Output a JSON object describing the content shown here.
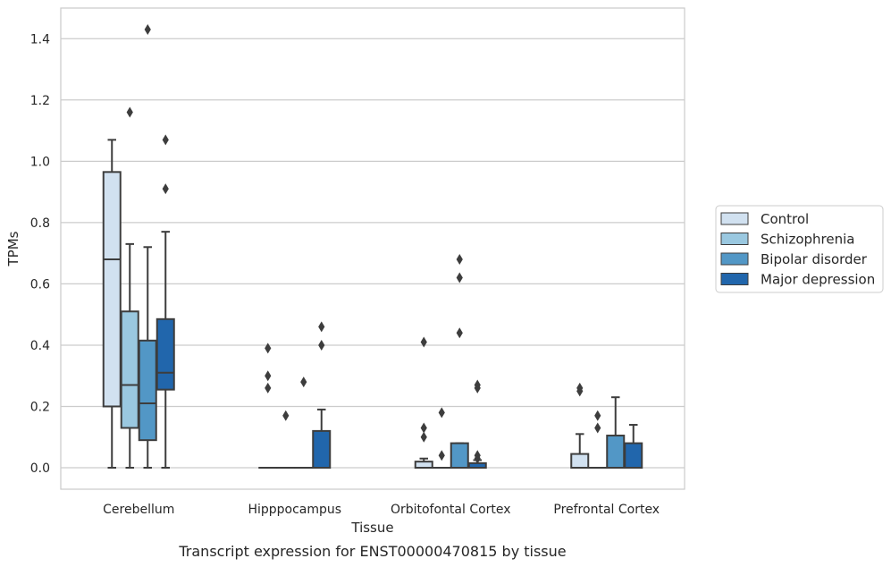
{
  "caption": "Transcript expression for ENST00000470815 by tissue",
  "chart_data": {
    "type": "box",
    "xlabel": "Tissue",
    "ylabel": "TPMs",
    "ylim": [
      -0.07,
      1.5
    ],
    "yticks": [
      "0.0",
      "0.2",
      "0.4",
      "0.6",
      "0.8",
      "1.0",
      "1.2",
      "1.4"
    ],
    "grid": "horizontal",
    "legend_position": "right",
    "categories": [
      "Cerebellum",
      "Hipppocampus",
      "Orbitofontal Cortex",
      "Prefrontal Cortex"
    ],
    "series": [
      {
        "name": "Control",
        "color": "#d1e1f0",
        "boxes": [
          {
            "whislo": 0.0,
            "q1": 0.2,
            "med": 0.68,
            "q3": 0.965,
            "whishi": 1.07,
            "fliers": []
          },
          {
            "whislo": 0.0,
            "q1": 0.0,
            "med": 0.0,
            "q3": 0.0,
            "whishi": 0.0,
            "fliers": [
              0.39,
              0.3,
              0.26
            ]
          },
          {
            "whislo": 0.0,
            "q1": 0.0,
            "med": 0.0,
            "q3": 0.02,
            "whishi": 0.03,
            "fliers": [
              0.41,
              0.13,
              0.1
            ]
          },
          {
            "whislo": 0.0,
            "q1": 0.0,
            "med": 0.0,
            "q3": 0.045,
            "whishi": 0.11,
            "fliers": [
              0.26,
              0.25
            ]
          }
        ]
      },
      {
        "name": "Schizophrenia",
        "color": "#9ac8e0",
        "boxes": [
          {
            "whislo": 0.0,
            "q1": 0.13,
            "med": 0.27,
            "q3": 0.51,
            "whishi": 0.73,
            "fliers": [
              1.16
            ]
          },
          {
            "whislo": 0.0,
            "q1": 0.0,
            "med": 0.0,
            "q3": 0.0,
            "whishi": 0.0,
            "fliers": [
              0.17
            ]
          },
          {
            "whislo": 0.0,
            "q1": 0.0,
            "med": 0.0,
            "q3": 0.0,
            "whishi": 0.0,
            "fliers": [
              0.18,
              0.04
            ]
          },
          {
            "whislo": 0.0,
            "q1": 0.0,
            "med": 0.0,
            "q3": 0.0,
            "whishi": 0.0,
            "fliers": [
              0.17,
              0.13
            ]
          }
        ]
      },
      {
        "name": "Bipolar disorder",
        "color": "#5297c6",
        "boxes": [
          {
            "whislo": 0.0,
            "q1": 0.09,
            "med": 0.21,
            "q3": 0.415,
            "whishi": 0.72,
            "fliers": [
              1.43
            ]
          },
          {
            "whislo": 0.0,
            "q1": 0.0,
            "med": 0.0,
            "q3": 0.0,
            "whishi": 0.0,
            "fliers": [
              0.28
            ]
          },
          {
            "whislo": 0.0,
            "q1": 0.0,
            "med": 0.0,
            "q3": 0.08,
            "whishi": 0.08,
            "fliers": [
              0.68,
              0.62,
              0.44
            ]
          },
          {
            "whislo": 0.0,
            "q1": 0.0,
            "med": 0.0,
            "q3": 0.105,
            "whishi": 0.23,
            "fliers": []
          }
        ]
      },
      {
        "name": "Major depression",
        "color": "#2166ac",
        "boxes": [
          {
            "whislo": 0.0,
            "q1": 0.255,
            "med": 0.31,
            "q3": 0.485,
            "whishi": 0.77,
            "fliers": [
              1.07,
              0.91
            ]
          },
          {
            "whislo": 0.0,
            "q1": 0.0,
            "med": 0.0,
            "q3": 0.12,
            "whishi": 0.19,
            "fliers": [
              0.46,
              0.4
            ]
          },
          {
            "whislo": 0.0,
            "q1": 0.0,
            "med": 0.0,
            "q3": 0.015,
            "whishi": 0.025,
            "fliers": [
              0.27,
              0.26,
              0.04,
              0.03
            ]
          },
          {
            "whislo": 0.0,
            "q1": 0.0,
            "med": 0.0,
            "q3": 0.08,
            "whishi": 0.14,
            "fliers": []
          }
        ]
      }
    ]
  }
}
